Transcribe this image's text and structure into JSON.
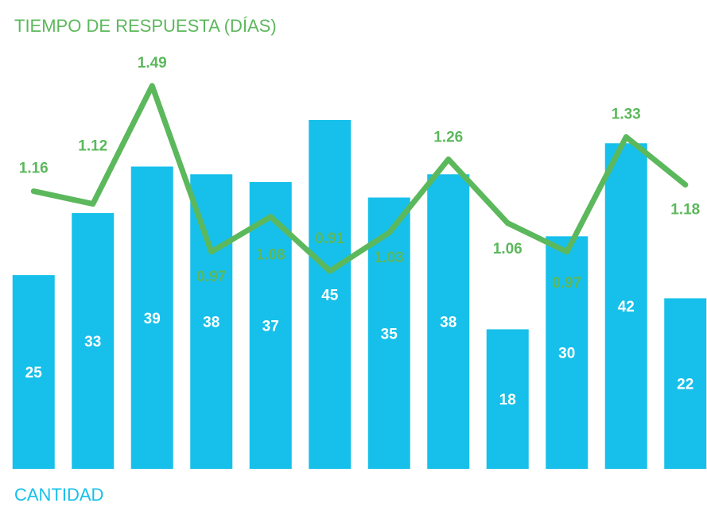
{
  "chart_data": {
    "type": "bar-line",
    "categories": [
      null,
      null,
      null,
      null,
      null,
      null,
      null,
      null,
      null,
      null,
      null,
      null
    ],
    "series": [
      {
        "name": "CANTIDAD",
        "color": "#17c0ea",
        "values": [
          25,
          33,
          39,
          38,
          37,
          45,
          35,
          38,
          18,
          30,
          42,
          22
        ]
      },
      {
        "name": "TIEMPO DE RESPUESTA (DÍAS)",
        "color": "#5cb85c",
        "axis": "y2",
        "values": [
          1.16,
          1.12,
          1.49,
          0.97,
          1.08,
          0.91,
          1.03,
          1.26,
          1.06,
          0.97,
          1.33,
          1.18
        ]
      }
    ],
    "ylim": [
      0,
      45
    ],
    "y2lim": [
      0.91,
      1.49
    ]
  }
}
